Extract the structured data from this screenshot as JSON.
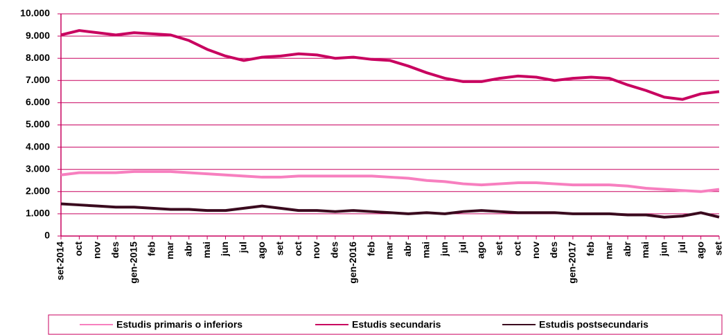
{
  "chart_data": {
    "type": "line",
    "categories": [
      "set-2014",
      "oct",
      "nov",
      "des",
      "gen-2015",
      "feb",
      "mar",
      "abr",
      "mai",
      "jun",
      "jul",
      "ago",
      "set",
      "oct",
      "nov",
      "des",
      "gen-2016",
      "feb",
      "mar",
      "abr",
      "mai",
      "jun",
      "jul",
      "ago",
      "set",
      "oct",
      "nov",
      "des",
      "gen-2017",
      "feb",
      "mar",
      "abr",
      "mai",
      "jun",
      "jul",
      "ago",
      "set"
    ],
    "series": [
      {
        "name": "Estudis primaris o inferiors",
        "color": "#f77fbf",
        "values": [
          2750,
          2850,
          2850,
          2850,
          2900,
          2900,
          2900,
          2850,
          2800,
          2750,
          2700,
          2650,
          2650,
          2700,
          2700,
          2700,
          2700,
          2700,
          2650,
          2600,
          2500,
          2450,
          2350,
          2300,
          2350,
          2400,
          2400,
          2350,
          2300,
          2300,
          2300,
          2250,
          2150,
          2100,
          2050,
          2000,
          2100
        ]
      },
      {
        "name": "Estudis secundaris",
        "color": "#c8005f",
        "values": [
          9050,
          9250,
          9150,
          9050,
          9150,
          9100,
          9050,
          8800,
          8400,
          8100,
          7900,
          8050,
          8100,
          8200,
          8150,
          8000,
          8050,
          7950,
          7900,
          7650,
          7350,
          7100,
          6950,
          6950,
          7100,
          7200,
          7150,
          7000,
          7100,
          7150,
          7100,
          6800,
          6550,
          6250,
          6150,
          6400,
          6500
        ]
      },
      {
        "name": "Estudis postsecundaris",
        "color": "#3a0a1e",
        "values": [
          1450,
          1400,
          1350,
          1300,
          1300,
          1250,
          1200,
          1200,
          1150,
          1150,
          1250,
          1350,
          1250,
          1150,
          1150,
          1100,
          1150,
          1100,
          1050,
          1000,
          1050,
          1000,
          1100,
          1150,
          1100,
          1050,
          1050,
          1050,
          1000,
          1000,
          1000,
          950,
          950,
          850,
          900,
          1050,
          850
        ]
      }
    ],
    "ylim": [
      0,
      10000
    ],
    "yticks": [
      0,
      {
        "value": 1000,
        "label": "1.000"
      },
      {
        "value": 2000,
        "label": "2.000"
      },
      {
        "value": 3000,
        "label": "3.000"
      },
      {
        "value": 4000,
        "label": "4.000"
      },
      {
        "value": 5000,
        "label": "5.000"
      },
      {
        "value": 6000,
        "label": "6.000"
      },
      {
        "value": 7000,
        "label": "7.000"
      },
      {
        "value": 8000,
        "label": "8.000"
      },
      {
        "value": 9000,
        "label": "9.000"
      },
      {
        "value": 10000,
        "label": "10.000"
      }
    ],
    "grid": true,
    "legend": "bottom"
  }
}
